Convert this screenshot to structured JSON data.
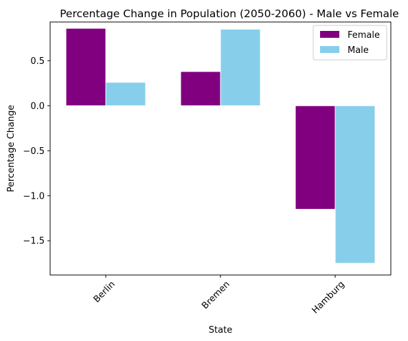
{
  "chart_data": {
    "type": "bar",
    "title": "Percentage Change in Population (2050-2060) - Male vs Female",
    "xlabel": "State",
    "ylabel": "Percentage Change",
    "categories": [
      "Berlin",
      "Bremen",
      "Hamburg"
    ],
    "series": [
      {
        "name": "Female",
        "color": "#800080",
        "values": [
          0.86,
          0.38,
          -1.15
        ]
      },
      {
        "name": "Male",
        "color": "#87CEEB",
        "values": [
          0.26,
          0.85,
          -1.75
        ]
      }
    ],
    "ylim": [
      -1.88,
      0.93
    ],
    "yticks": [
      0.5,
      0.0,
      -0.5,
      -1.0,
      -1.5
    ],
    "ytick_labels": [
      "0.5",
      "0.0",
      "−0.5",
      "−1.0",
      "−1.5"
    ],
    "grid": false,
    "legend_position": "top-right",
    "xtick_rotation": 45
  }
}
